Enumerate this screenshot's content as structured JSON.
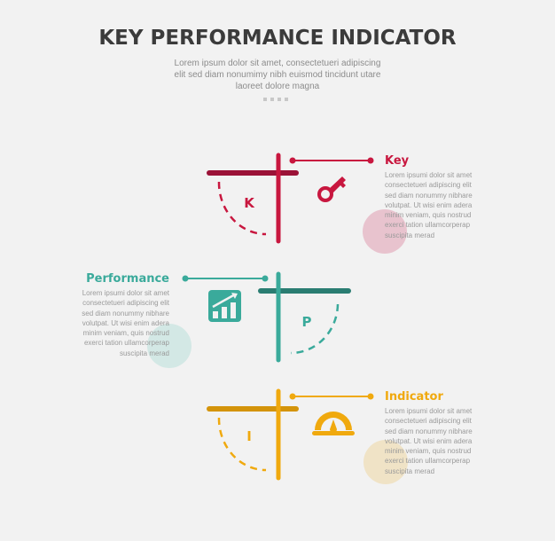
{
  "header": {
    "title": "KEY PERFORMANCE INDICATOR",
    "subtitle_lines": [
      "Lorem ipsum dolor sit amet, consectetueri adipiscing",
      "elit sed diam nonumimy nibh euismod tincidunt utare",
      "laoreet dolore magna"
    ]
  },
  "colors": {
    "key": "#c8173f",
    "key_dark": "#9b1237",
    "performance": "#3aaa9b",
    "performance_dark": "#2a7d72",
    "indicator": "#f0a90e",
    "indicator_dark": "#d4940a"
  },
  "items": [
    {
      "letter": "K",
      "heading": "Key",
      "icon": "key-icon",
      "body": "Lorem ipsumi dolor sit amet consectetueri adipiscing elit sed diam nonummy nibhare volutpat. Ut wisi enim adera minim veniam, quis nostrud exerci tation ullamcorperap suscipita merad"
    },
    {
      "letter": "P",
      "heading": "Performance",
      "icon": "growth-chart-icon",
      "body": "Lorem ipsumi dolor sit amet consectetueri adipiscing elit sed diam nonummy nibhare volutpat. Ut wisi enim adera minim veniam, quis nostrud exerci tation ullamcorperap suscipita merad"
    },
    {
      "letter": "I",
      "heading": "Indicator",
      "icon": "gauge-icon",
      "body": "Lorem ipsumi dolor sit amet consectetueri adipiscing elit sed diam nonummy nibhare volutpat. Ut wisi enim adera minim veniam, quis nostrud exerci tation ullamcorperap suscipita merad"
    }
  ]
}
